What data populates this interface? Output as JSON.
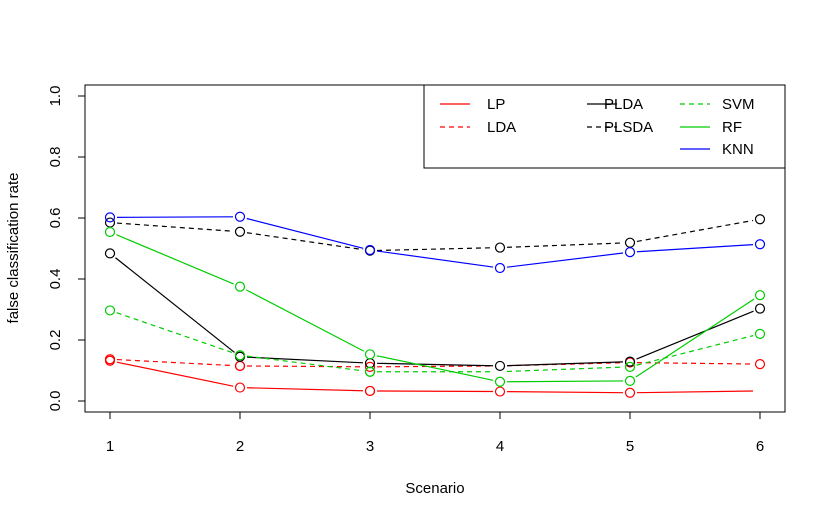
{
  "chart_data": {
    "type": "line",
    "title": "",
    "xlabel": "Scenario",
    "ylabel": "false classification rate",
    "x": [
      1,
      2,
      3,
      4,
      5,
      6
    ],
    "xticks": [
      "1",
      "2",
      "3",
      "4",
      "5",
      "6"
    ],
    "ylim": [
      0,
      1
    ],
    "yticks": [
      "0.0",
      "0.2",
      "0.4",
      "0.6",
      "0.8",
      "1.0"
    ],
    "grid": false,
    "legend_position": "top-right",
    "markers": "open-circle",
    "series": [
      {
        "name": "LP",
        "color": "#FF0000",
        "dash": false,
        "values": [
          0.132,
          0.044,
          0.033,
          0.031,
          0.027,
          0.033
        ]
      },
      {
        "name": "LDA",
        "color": "#FF0000",
        "dash": true,
        "values": [
          0.137,
          0.115,
          0.112,
          0.115,
          0.126,
          0.121
        ]
      },
      {
        "name": "PLDA",
        "color": "#000000",
        "dash": false,
        "values": [
          0.484,
          0.145,
          0.124,
          0.115,
          0.129,
          0.303
        ]
      },
      {
        "name": "PLSDA",
        "color": "#000000",
        "dash": true,
        "values": [
          0.585,
          0.555,
          0.493,
          0.503,
          0.519,
          0.596
        ]
      },
      {
        "name": "SVM",
        "color": "#00CD00",
        "dash": true,
        "values": [
          0.297,
          0.15,
          0.096,
          0.096,
          0.112,
          0.22
        ]
      },
      {
        "name": "RF",
        "color": "#00CD00",
        "dash": false,
        "values": [
          0.554,
          0.375,
          0.153,
          0.063,
          0.066,
          0.347
        ]
      },
      {
        "name": "KNN",
        "color": "#0000FF",
        "dash": false,
        "values": [
          0.602,
          0.604,
          0.495,
          0.436,
          0.488,
          0.514
        ]
      }
    ]
  }
}
